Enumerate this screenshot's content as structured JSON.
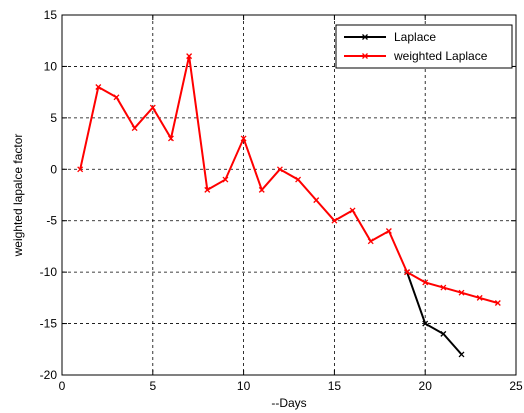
{
  "chart_data": {
    "type": "line",
    "xlabel": "--Days",
    "ylabel": "weighted lapalce factor",
    "xlim": [
      0,
      25
    ],
    "ylim": [
      -20,
      15
    ],
    "xticks": [
      0,
      5,
      10,
      15,
      20,
      25
    ],
    "yticks": [
      -20,
      -15,
      -10,
      -5,
      0,
      5,
      10,
      15
    ],
    "grid": true,
    "grid_style": "dashed",
    "legend_position": "top-right",
    "series": [
      {
        "name": "Laplace",
        "color": "#000000",
        "marker": "x",
        "x": [
          19,
          20,
          21,
          22
        ],
        "y": [
          -10,
          -15,
          -16,
          -18
        ]
      },
      {
        "name": "weighted Laplace",
        "color": "#ff0000",
        "marker": "x",
        "x": [
          1,
          2,
          3,
          4,
          5,
          6,
          7,
          8,
          9,
          10,
          11,
          12,
          13,
          14,
          15,
          16,
          17,
          18,
          19,
          20,
          21,
          22,
          23,
          24
        ],
        "y": [
          0,
          8,
          7,
          4,
          6,
          3,
          11,
          -2,
          -1,
          3,
          -2,
          0,
          -1,
          -3,
          -5,
          -4,
          -7,
          -6,
          -10,
          -11,
          -11.5,
          -12,
          -12.5,
          -13
        ]
      }
    ]
  }
}
